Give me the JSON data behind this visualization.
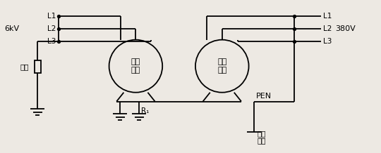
{
  "fig_width": 5.4,
  "fig_height": 2.18,
  "dpi": 100,
  "bg_color": "#ede9e3",
  "line_color": "black",
  "lw": 1.3,
  "left_voltage": "6kV",
  "resistor_label": "阻抗",
  "hv_motor_label": "高压\n电机",
  "lv_motor_label": "低压\n电机",
  "right_voltage": "380V",
  "pen_label": "PEN",
  "work_ground_label1": "工作",
  "work_ground_label2": "接地",
  "ground_r_label": "R₁"
}
